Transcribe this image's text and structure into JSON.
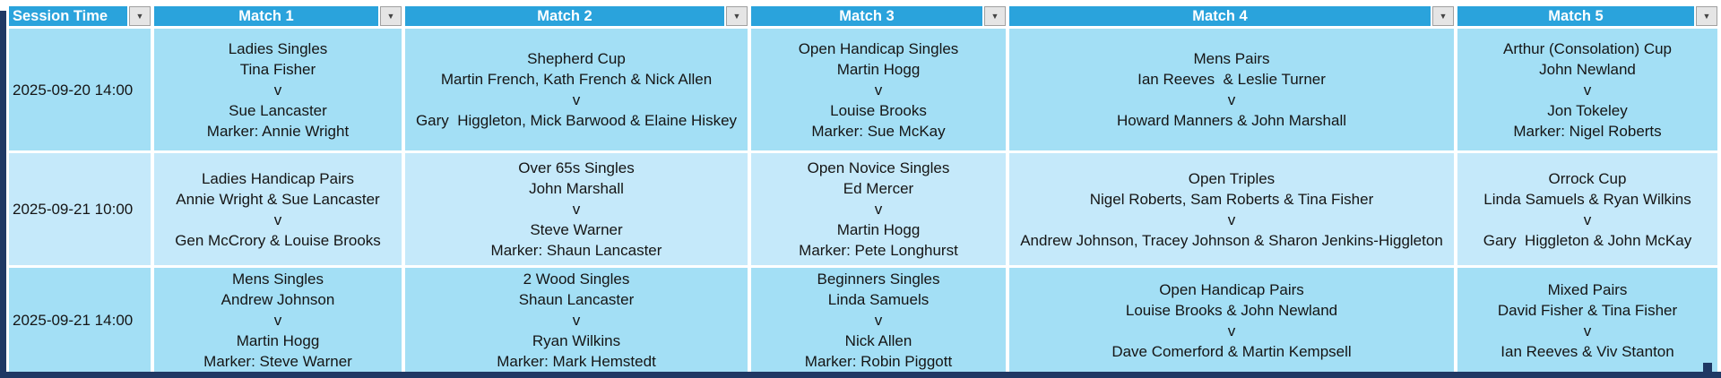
{
  "colors": {
    "header_bg": "#2aa3dc",
    "header_text": "#ffffff",
    "row_band_dark": "#a3dff5",
    "row_band_light": "#c5e9fa",
    "object_border": "#1f3864",
    "body_text": "#151515",
    "filter_button_bg": "#e5e5e5"
  },
  "icons": {
    "filter_dropdown": "▼"
  },
  "table": {
    "columns": [
      {
        "label": "Session Time"
      },
      {
        "label": "Match 1"
      },
      {
        "label": "Match 2"
      },
      {
        "label": "Match 3"
      },
      {
        "label": "Match 4"
      },
      {
        "label": "Match 5"
      }
    ],
    "rows": [
      {
        "session_time": "2025-09-20 14:00",
        "matches": [
          {
            "lines": [
              "Ladies Singles",
              "Tina Fisher",
              "v",
              "Sue Lancaster",
              "Marker: Annie Wright"
            ]
          },
          {
            "lines": [
              "Shepherd Cup",
              "Martin French, Kath French & Nick Allen",
              "v",
              "Gary  Higgleton, Mick Barwood & Elaine Hiskey"
            ]
          },
          {
            "lines": [
              "Open Handicap Singles",
              "Martin Hogg",
              "v",
              "Louise Brooks",
              "Marker: Sue McKay"
            ]
          },
          {
            "lines": [
              "Mens Pairs",
              "Ian Reeves  & Leslie Turner",
              "v",
              "Howard Manners & John Marshall"
            ]
          },
          {
            "lines": [
              "Arthur (Consolation) Cup",
              "John Newland",
              "v",
              "Jon Tokeley",
              "Marker: Nigel Roberts"
            ]
          }
        ]
      },
      {
        "session_time": "2025-09-21 10:00",
        "matches": [
          {
            "lines": [
              "Ladies Handicap Pairs",
              "Annie Wright & Sue Lancaster",
              "v",
              "Gen McCrory & Louise Brooks"
            ]
          },
          {
            "lines": [
              "Over 65s Singles",
              "John Marshall",
              "v",
              "Steve Warner",
              "Marker: Shaun Lancaster"
            ]
          },
          {
            "lines": [
              "Open Novice Singles",
              "Ed Mercer",
              "v",
              "Martin Hogg",
              "Marker: Pete Longhurst"
            ]
          },
          {
            "lines": [
              "Open Triples",
              "Nigel Roberts, Sam Roberts & Tina Fisher",
              "v",
              "Andrew Johnson, Tracey Johnson & Sharon Jenkins-Higgleton"
            ]
          },
          {
            "lines": [
              "Orrock Cup",
              "Linda Samuels & Ryan Wilkins",
              "v",
              "Gary  Higgleton & John McKay"
            ]
          }
        ]
      },
      {
        "session_time": "2025-09-21 14:00",
        "matches": [
          {
            "lines": [
              "Mens Singles",
              "Andrew Johnson",
              "v",
              "Martin Hogg",
              "Marker: Steve Warner"
            ]
          },
          {
            "lines": [
              "2 Wood Singles",
              "Shaun Lancaster",
              "v",
              "Ryan Wilkins",
              "Marker: Mark Hemstedt"
            ]
          },
          {
            "lines": [
              "Beginners Singles",
              "Linda Samuels",
              "v",
              "Nick Allen",
              "Marker: Robin Piggott"
            ]
          },
          {
            "lines": [
              "Open Handicap Pairs",
              "Louise Brooks & John Newland",
              "v",
              "Dave Comerford & Martin Kempsell"
            ]
          },
          {
            "lines": [
              "Mixed Pairs",
              "David Fisher & Tina Fisher",
              "v",
              "Ian Reeves & Viv Stanton"
            ]
          }
        ]
      }
    ]
  }
}
